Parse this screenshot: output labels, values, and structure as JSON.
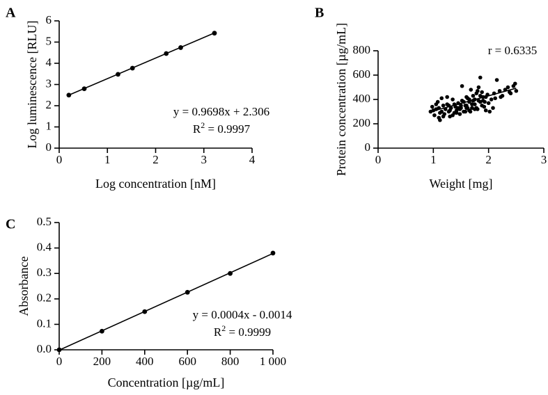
{
  "chart_data": [
    {
      "type": "scatter",
      "panel_label": "A",
      "xlabel": "Log concentration [nM]",
      "ylabel": "Log luminescence [RLU]",
      "xlim": [
        0,
        4
      ],
      "ylim": [
        0,
        6
      ],
      "xticks": [
        "0",
        "1",
        "2",
        "3",
        "4"
      ],
      "yticks": [
        "0",
        "1",
        "2",
        "3",
        "4",
        "5",
        "6"
      ],
      "points": [
        [
          0.2,
          2.5
        ],
        [
          0.52,
          2.8
        ],
        [
          1.22,
          3.48
        ],
        [
          1.52,
          3.77
        ],
        [
          2.22,
          4.46
        ],
        [
          2.52,
          4.74
        ],
        [
          3.22,
          5.42
        ]
      ],
      "fit": {
        "slope": 0.9698,
        "intercept": 2.306,
        "x_range": [
          0.2,
          3.22
        ]
      },
      "equation": "y = 0.9698x + 2.306",
      "r2_prefix": "R",
      "r2_sup": "2",
      "r2_value": " = 0.9997"
    },
    {
      "type": "scatter",
      "panel_label": "B",
      "xlabel": "Weight [mg]",
      "ylabel": "Protein concentration [µg/mL]",
      "xlim": [
        0,
        3
      ],
      "ylim": [
        0,
        800
      ],
      "xticks": [
        "0",
        "1",
        "2",
        "3"
      ],
      "yticks": [
        "0",
        "200",
        "400",
        "600",
        "800"
      ],
      "points": [
        [
          0.95,
          300
        ],
        [
          0.98,
          340
        ],
        [
          1.02,
          270
        ],
        [
          1.05,
          320
        ],
        [
          1.08,
          380
        ],
        [
          1.1,
          250
        ],
        [
          1.12,
          230
        ],
        [
          1.15,
          300
        ],
        [
          1.15,
          410
        ],
        [
          1.18,
          350
        ],
        [
          1.2,
          280
        ],
        [
          1.22,
          320
        ],
        [
          1.25,
          360
        ],
        [
          1.28,
          300
        ],
        [
          1.3,
          260
        ],
        [
          1.32,
          330
        ],
        [
          1.35,
          400
        ],
        [
          1.38,
          290
        ],
        [
          1.4,
          340
        ],
        [
          1.42,
          310
        ],
        [
          1.45,
          370
        ],
        [
          1.48,
          280
        ],
        [
          1.5,
          330
        ],
        [
          1.52,
          390
        ],
        [
          1.55,
          300
        ],
        [
          1.58,
          350
        ],
        [
          1.6,
          420
        ],
        [
          1.62,
          330
        ],
        [
          1.65,
          380
        ],
        [
          1.67,
          300
        ],
        [
          1.7,
          360
        ],
        [
          1.72,
          430
        ],
        [
          1.75,
          400
        ],
        [
          1.78,
          330
        ],
        [
          1.8,
          470
        ],
        [
          1.82,
          390
        ],
        [
          1.85,
          580
        ],
        [
          1.88,
          350
        ],
        [
          1.9,
          420
        ],
        [
          1.93,
          380
        ],
        [
          1.95,
          310
        ],
        [
          1.98,
          440
        ],
        [
          2.0,
          370
        ],
        [
          2.02,
          300
        ],
        [
          2.05,
          400
        ],
        [
          2.1,
          450
        ],
        [
          2.15,
          560
        ],
        [
          2.2,
          470
        ],
        [
          2.25,
          430
        ],
        [
          2.3,
          480
        ],
        [
          2.35,
          500
        ],
        [
          2.4,
          450
        ],
        [
          2.45,
          510
        ],
        [
          2.48,
          530
        ],
        [
          2.5,
          470
        ],
        [
          1.25,
          420
        ],
        [
          1.45,
          330
        ],
        [
          1.55,
          380
        ],
        [
          1.65,
          310
        ],
        [
          1.75,
          360
        ],
        [
          1.85,
          430
        ],
        [
          1.95,
          420
        ],
        [
          1.05,
          360
        ],
        [
          1.35,
          270
        ],
        [
          1.6,
          350
        ],
        [
          1.72,
          390
        ],
        [
          1.8,
          320
        ],
        [
          1.88,
          460
        ],
        [
          2.08,
          330
        ],
        [
          1.52,
          510
        ],
        [
          1.68,
          480
        ],
        [
          1.78,
          450
        ],
        [
          1.82,
          500
        ],
        [
          1.92,
          340
        ],
        [
          2.12,
          410
        ],
        [
          1.12,
          290
        ],
        [
          1.28,
          350
        ],
        [
          1.42,
          290
        ],
        [
          1.58,
          300
        ],
        [
          1.7,
          330
        ],
        [
          1.18,
          260
        ],
        [
          1.38,
          360
        ],
        [
          1.48,
          320
        ],
        [
          1.62,
          410
        ],
        [
          1.9,
          390
        ],
        [
          2.22,
          420
        ],
        [
          2.38,
          460
        ],
        [
          1.0,
          310
        ],
        [
          1.1,
          330
        ],
        [
          1.75,
          320
        ],
        [
          1.6,
          330
        ],
        [
          1.85,
          380
        ],
        [
          1.3,
          310
        ],
        [
          1.5,
          350
        ],
        [
          1.65,
          400
        ]
      ],
      "fit": {
        "slope": 125,
        "intercept": 180,
        "x_range": [
          0.95,
          2.5
        ]
      },
      "annotation": "r = 0.6335"
    },
    {
      "type": "scatter",
      "panel_label": "C",
      "xlabel": "Concentration [µg/mL]",
      "ylabel": "Absorbance",
      "xlim": [
        0,
        1000
      ],
      "ylim": [
        0,
        0.5
      ],
      "xticks": [
        "0",
        "200",
        "400",
        "600",
        "800",
        "1 000"
      ],
      "yticks": [
        "0.0",
        "0.1",
        "0.2",
        "0.3",
        "0.4",
        "0.5"
      ],
      "points": [
        [
          0,
          0.0
        ],
        [
          200,
          0.073
        ],
        [
          400,
          0.15
        ],
        [
          600,
          0.226
        ],
        [
          800,
          0.3
        ],
        [
          1000,
          0.38
        ]
      ],
      "fit": {
        "slope": 0.00038,
        "intercept": -0.0014,
        "x_range": [
          0,
          1000
        ]
      },
      "equation": "y = 0.0004x - 0.0014",
      "r2_prefix": "R",
      "r2_sup": "2",
      "r2_value": " = 0.9999"
    }
  ]
}
